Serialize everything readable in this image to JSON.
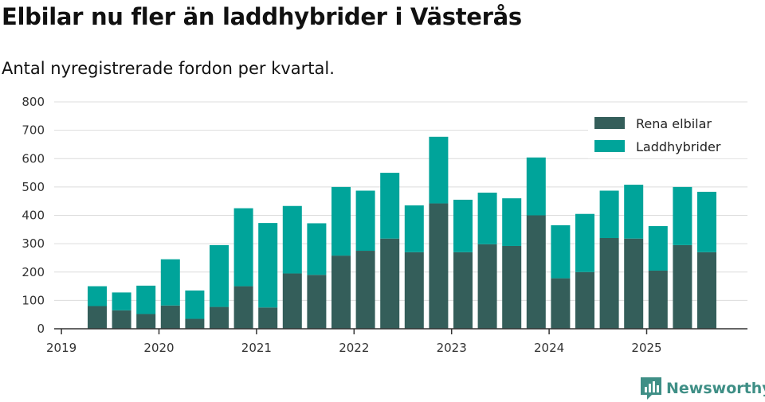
{
  "header": {
    "title": "Elbilar nu fler än laddhybrider i Västerås",
    "subtitle": "Antal nyregistrerade fordon per kvartal."
  },
  "brand": {
    "name": "Newsworthy",
    "color": "#3f8f86"
  },
  "chart_data": {
    "type": "bar",
    "stacked": true,
    "title": "Elbilar nu fler än laddhybrider i Västerås",
    "subtitle": "Antal nyregistrerade fordon per kvartal.",
    "xlabel": "",
    "ylabel": "",
    "ylim": [
      0,
      800
    ],
    "yticks": [
      0,
      100,
      200,
      300,
      400,
      500,
      600,
      700,
      800
    ],
    "xticks": [
      "2019",
      "2020",
      "2021",
      "2022",
      "2023",
      "2024",
      "2025"
    ],
    "grid": true,
    "legend_position": "top-right",
    "categories": [
      "2019 Q2",
      "2019 Q3",
      "2019 Q4",
      "2020 Q1",
      "2020 Q2",
      "2020 Q3",
      "2020 Q4",
      "2021 Q1",
      "2021 Q2",
      "2021 Q3",
      "2021 Q4",
      "2022 Q1",
      "2022 Q2",
      "2022 Q3",
      "2022 Q4",
      "2023 Q1",
      "2023 Q2",
      "2023 Q3",
      "2023 Q4",
      "2024 Q1",
      "2024 Q2",
      "2024 Q3",
      "2024 Q4",
      "2025 Q1",
      "2025 Q2",
      "2025 Q3"
    ],
    "series": [
      {
        "name": "Rena elbilar",
        "color": "#345e5a",
        "values": [
          80,
          65,
          52,
          82,
          35,
          77,
          150,
          75,
          195,
          190,
          258,
          275,
          318,
          270,
          442,
          270,
          298,
          292,
          400,
          178,
          200,
          320,
          318,
          205,
          295,
          270
        ]
      },
      {
        "name": "Laddhybrider",
        "color": "#00a49a",
        "values": [
          70,
          63,
          100,
          163,
          100,
          218,
          275,
          298,
          238,
          182,
          242,
          212,
          232,
          165,
          235,
          185,
          182,
          168,
          204,
          187,
          205,
          167,
          190,
          157,
          205,
          213
        ]
      }
    ]
  }
}
